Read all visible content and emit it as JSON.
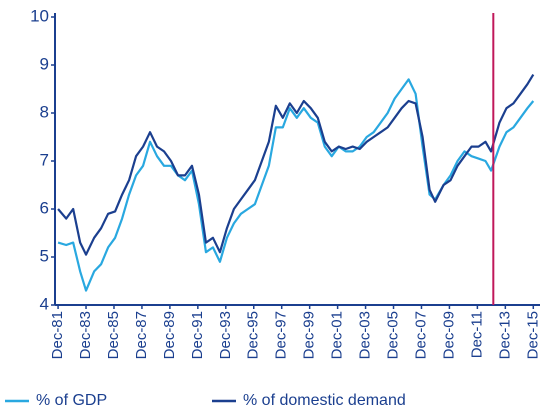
{
  "chart_data": {
    "type": "line",
    "x": [
      1981.92,
      1982.5,
      1983.0,
      1983.5,
      1983.92,
      1984.5,
      1985.0,
      1985.5,
      1986.0,
      1986.5,
      1987.0,
      1987.5,
      1988.0,
      1988.5,
      1989.0,
      1989.5,
      1990.0,
      1990.5,
      1991.0,
      1991.5,
      1992.0,
      1992.5,
      1993.0,
      1993.5,
      1994.0,
      1994.5,
      1995.0,
      1995.5,
      1996.0,
      1996.5,
      1997.0,
      1997.5,
      1998.0,
      1998.5,
      1999.0,
      1999.5,
      2000.0,
      2000.5,
      2001.0,
      2001.5,
      2002.0,
      2002.5,
      2003.0,
      2003.5,
      2004.0,
      2004.5,
      2005.0,
      2005.5,
      2006.0,
      2006.5,
      2007.0,
      2007.5,
      2008.0,
      2008.5,
      2008.9,
      2009.5,
      2010.0,
      2010.5,
      2011.0,
      2011.5,
      2012.0,
      2012.5,
      2012.9,
      2013.5,
      2014.0,
      2014.5,
      2015.0,
      2015.5,
      2015.92
    ],
    "series": [
      {
        "name": "% of GDP",
        "color": "#29a8e0",
        "values": [
          5.3,
          5.25,
          5.3,
          4.7,
          4.3,
          4.7,
          4.85,
          5.2,
          5.4,
          5.8,
          6.3,
          6.7,
          6.9,
          7.4,
          7.1,
          6.9,
          6.9,
          6.7,
          6.6,
          6.8,
          6.1,
          5.1,
          5.2,
          4.9,
          5.4,
          5.7,
          5.9,
          6.0,
          6.1,
          6.5,
          6.9,
          7.7,
          7.7,
          8.1,
          7.9,
          8.1,
          7.9,
          7.8,
          7.3,
          7.1,
          7.3,
          7.2,
          7.2,
          7.3,
          7.5,
          7.6,
          7.8,
          8.0,
          8.3,
          8.5,
          8.7,
          8.4,
          7.3,
          6.3,
          6.2,
          6.5,
          6.7,
          7.0,
          7.2,
          7.1,
          7.05,
          7.0,
          6.8,
          7.3,
          7.6,
          7.7,
          7.9,
          8.1,
          8.25
        ]
      },
      {
        "name": "% of domestic demand",
        "color": "#1b3f8f",
        "values": [
          6.0,
          5.8,
          6.0,
          5.3,
          5.05,
          5.4,
          5.6,
          5.9,
          5.95,
          6.3,
          6.6,
          7.1,
          7.3,
          7.6,
          7.3,
          7.2,
          7.0,
          6.7,
          6.7,
          6.9,
          6.3,
          5.3,
          5.4,
          5.1,
          5.6,
          6.0,
          6.2,
          6.4,
          6.6,
          7.0,
          7.4,
          8.15,
          7.9,
          8.2,
          8.0,
          8.25,
          8.1,
          7.9,
          7.4,
          7.2,
          7.3,
          7.25,
          7.3,
          7.25,
          7.4,
          7.5,
          7.6,
          7.7,
          7.9,
          8.1,
          8.25,
          8.2,
          7.5,
          6.4,
          6.15,
          6.5,
          6.6,
          6.9,
          7.1,
          7.3,
          7.3,
          7.4,
          7.2,
          7.8,
          8.1,
          8.2,
          8.4,
          8.6,
          8.8
        ]
      }
    ],
    "vline": 2013.06,
    "vline_color": "#c0185a",
    "xlim": [
      1981.7,
      2016.4
    ],
    "xticks": [
      {
        "value": 1981.92,
        "label": "Dec-81"
      },
      {
        "value": 1983.92,
        "label": "Dec-83"
      },
      {
        "value": 1985.92,
        "label": "Dec-85"
      },
      {
        "value": 1987.92,
        "label": "Dec-87"
      },
      {
        "value": 1989.92,
        "label": "Dec-89"
      },
      {
        "value": 1991.92,
        "label": "Dec-91"
      },
      {
        "value": 1993.92,
        "label": "Dec-93"
      },
      {
        "value": 1995.92,
        "label": "Dec-95"
      },
      {
        "value": 1997.92,
        "label": "Dec-97"
      },
      {
        "value": 1999.92,
        "label": "Dec-99"
      },
      {
        "value": 2001.92,
        "label": "Dec-01"
      },
      {
        "value": 2003.92,
        "label": "Dec-03"
      },
      {
        "value": 2005.92,
        "label": "Dec-05"
      },
      {
        "value": 2007.92,
        "label": "Dec-07"
      },
      {
        "value": 2009.92,
        "label": "Dec-09"
      },
      {
        "value": 2011.92,
        "label": "Dec-11"
      },
      {
        "value": 2013.92,
        "label": "Dec-13"
      },
      {
        "value": 2015.92,
        "label": "Dec-15"
      }
    ],
    "ylim": [
      4,
      10
    ],
    "yticks": [
      4,
      5,
      6,
      7,
      8,
      9,
      10
    ],
    "grid": false
  }
}
